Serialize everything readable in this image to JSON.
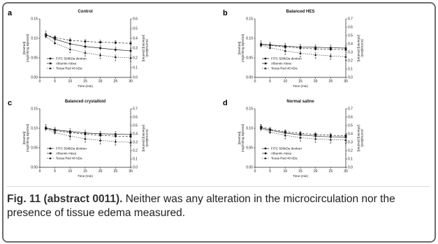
{
  "caption": {
    "label": "Fig. 11 (abstract 0011).",
    "text": " Neither was any alteration in the microcirculation nor the presence of tissue edema measured."
  },
  "chart_data": [
    {
      "panel": "a",
      "title": "Control",
      "type": "line",
      "x": [
        2,
        5,
        10,
        15,
        20,
        25,
        30
      ],
      "xlabel": "Time (min)",
      "ylabel": "[Dextran]\n(mg/ml/mg injected)",
      "y2label": "[Albumin] [dextran]\n(normalized)",
      "ylim": [
        0,
        0.15
      ],
      "y2lim": [
        0,
        0.6
      ],
      "yticks": [
        "0.00",
        "0.05",
        "0.10",
        "0.15"
      ],
      "y2ticks": [
        "0.0",
        "0.1",
        "0.2",
        "0.3",
        "0.4",
        "0.5",
        "0.6"
      ],
      "xticks": [
        "0",
        "5",
        "10",
        "15",
        "20",
        "25",
        "30"
      ],
      "series": [
        {
          "name": "FITC 500kDa dextran",
          "marker": "circle",
          "values": [
            0.11,
            0.098,
            0.086,
            0.079,
            0.075,
            0.071,
            0.068
          ]
        },
        {
          "name": "Albumin Alexa",
          "marker": "square",
          "values": [
            0.108,
            0.102,
            0.095,
            0.092,
            0.09,
            0.089,
            0.087
          ]
        },
        {
          "name": "Texas Red 40 kDa",
          "marker": "triangle",
          "values": [
            0.105,
            0.088,
            0.072,
            0.063,
            0.057,
            0.052,
            0.05
          ]
        }
      ],
      "significance": [
        10,
        15,
        20,
        25,
        30
      ],
      "legend": "bottom-left"
    },
    {
      "panel": "b",
      "title": "Balanced HES",
      "type": "line",
      "x": [
        2,
        5,
        10,
        15,
        20,
        25,
        30
      ],
      "xlabel": "Time (min)",
      "ylabel": "[Dextran]\n(mg/ml/mg injected)",
      "y2label": "[Albumin] [dextran]\n(normalized)",
      "ylim": [
        0,
        0.15
      ],
      "y2lim": [
        0,
        0.7
      ],
      "yticks": [
        "0.00",
        "0.05",
        "0.10",
        "0.15"
      ],
      "y2ticks": [
        "0.0",
        "0.1",
        "0.2",
        "0.3",
        "0.4",
        "0.5",
        "0.6",
        "0.7"
      ],
      "xticks": [
        "0",
        "5",
        "10",
        "15",
        "20",
        "25",
        "30"
      ],
      "series": [
        {
          "name": "FITC 500kDa dextran",
          "marker": "circle",
          "values": [
            0.085,
            0.083,
            0.08,
            0.078,
            0.077,
            0.076,
            0.075
          ]
        },
        {
          "name": "Albumin Alexa",
          "marker": "square",
          "values": [
            0.084,
            0.082,
            0.078,
            0.075,
            0.073,
            0.072,
            0.071
          ]
        },
        {
          "name": "Texas Red 40 kDa",
          "marker": "triangle",
          "values": [
            0.082,
            0.076,
            0.068,
            0.062,
            0.058,
            0.055,
            0.053
          ]
        }
      ],
      "significance": [
        10,
        15,
        20,
        25,
        30
      ],
      "legend": "bottom-left"
    },
    {
      "panel": "c",
      "title": "Balanced crystalloid",
      "type": "line",
      "x": [
        2,
        5,
        10,
        15,
        20,
        25,
        30
      ],
      "xlabel": "Time (min)",
      "ylabel": "[Dextran]\n(mg/ml/mg injected)",
      "y2label": "[Albumin] [dextran]\n(normalized)",
      "ylim": [
        0,
        0.15
      ],
      "y2lim": [
        0,
        0.7
      ],
      "yticks": [
        "0.00",
        "0.05",
        "0.10",
        "0.15"
      ],
      "y2ticks": [
        "0.0",
        "0.1",
        "0.2",
        "0.3",
        "0.4",
        "0.5",
        "0.6",
        "0.7"
      ],
      "xticks": [
        "0",
        "5",
        "10",
        "15",
        "20",
        "25",
        "30"
      ],
      "series": [
        {
          "name": "FITC 500kDa dextran",
          "marker": "circle",
          "values": [
            0.101,
            0.096,
            0.092,
            0.088,
            0.086,
            0.085,
            0.084
          ]
        },
        {
          "name": "Albumin Alexa",
          "marker": "square",
          "values": [
            0.1,
            0.094,
            0.089,
            0.085,
            0.082,
            0.08,
            0.079
          ]
        },
        {
          "name": "Texas Red 40 kDa",
          "marker": "triangle",
          "values": [
            0.099,
            0.089,
            0.08,
            0.073,
            0.069,
            0.066,
            0.064
          ]
        }
      ],
      "significance": [
        10,
        15,
        20,
        25,
        30
      ],
      "legend": "bottom-left"
    },
    {
      "panel": "d",
      "title": "Normal saline",
      "type": "line",
      "x": [
        2,
        5,
        10,
        15,
        20,
        25,
        30
      ],
      "xlabel": "Time (min)",
      "ylabel": "[Dextran]\n(mg/ml/mg injected)",
      "y2label": "[Albumin] [dextran]\n(normalized)",
      "ylim": [
        0,
        0.15
      ],
      "y2lim": [
        0,
        0.7
      ],
      "yticks": [
        "0.00",
        "0.05",
        "0.10",
        "0.15"
      ],
      "y2ticks": [
        "0.0",
        "0.1",
        "0.2",
        "0.3",
        "0.4",
        "0.5",
        "0.6",
        "0.7"
      ],
      "xticks": [
        "0",
        "5",
        "10",
        "15",
        "20",
        "25",
        "30"
      ],
      "series": [
        {
          "name": "FITC 500kDa dextran",
          "marker": "circle",
          "values": [
            0.101,
            0.095,
            0.088,
            0.083,
            0.08,
            0.078,
            0.077
          ]
        },
        {
          "name": "Albumin Alexa",
          "marker": "square",
          "values": [
            0.104,
            0.097,
            0.091,
            0.087,
            0.084,
            0.082,
            0.081
          ]
        },
        {
          "name": "Texas Red 40 kDa",
          "marker": "triangle",
          "values": [
            0.099,
            0.09,
            0.082,
            0.076,
            0.073,
            0.071,
            0.07
          ]
        }
      ],
      "significance": [
        10,
        15,
        20,
        25,
        30
      ],
      "legend": "bottom-left"
    }
  ]
}
